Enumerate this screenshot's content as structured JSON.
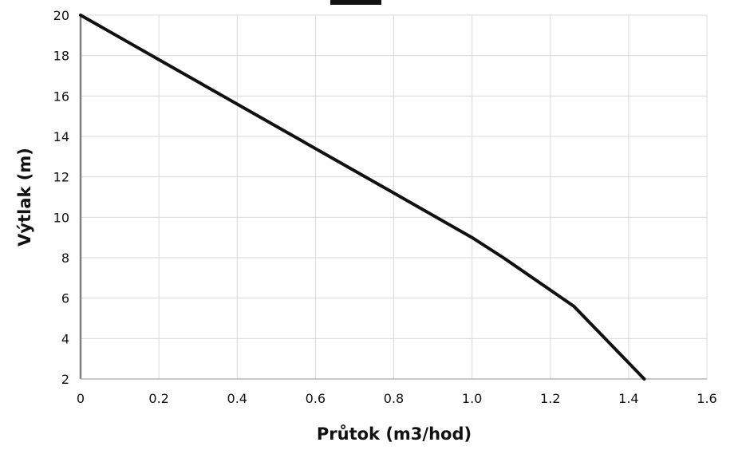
{
  "chart_data": {
    "type": "line",
    "title": "",
    "xlabel": "Průtok (m3/hod)",
    "ylabel": "Výtlak (m)",
    "xlim": [
      0,
      1.6
    ],
    "ylim": [
      2,
      20
    ],
    "x_ticks": [
      "0",
      "0.2",
      "0.4",
      "0.6",
      "0.8",
      "1.0",
      "1.2",
      "1.4",
      "1.6"
    ],
    "y_ticks": [
      "2",
      "4",
      "6",
      "8",
      "10",
      "12",
      "14",
      "16",
      "18",
      "20"
    ],
    "grid": true,
    "legend": "none",
    "series": [
      {
        "color": "#111111",
        "x": [
          0,
          0.2,
          0.4,
          0.6,
          0.8,
          1.0,
          1.08,
          1.26,
          1.44
        ],
        "y": [
          20,
          17.8,
          15.6,
          13.4,
          11.2,
          9.0,
          8.0,
          5.6,
          2.0
        ]
      }
    ],
    "legend_box_color": "#111111"
  }
}
